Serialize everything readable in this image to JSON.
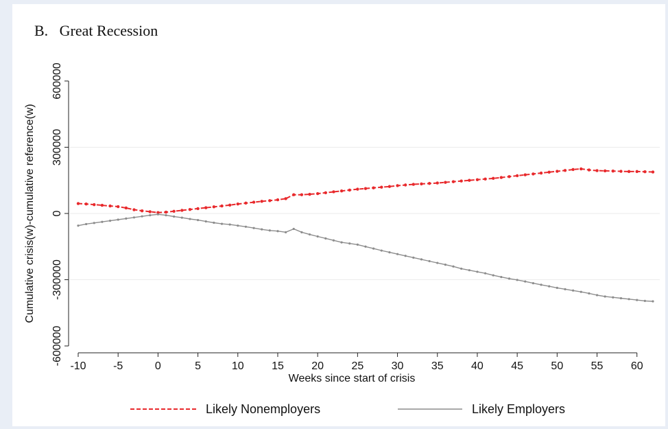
{
  "chart_data": {
    "type": "line",
    "title": "B.   Great Recession",
    "xlabel": "Weeks since start of crisis",
    "ylabel": "Cumulative crisis(w)-cumulative reference(w)",
    "xlim": [
      -10,
      62
    ],
    "ylim": [
      -600000,
      600000
    ],
    "x_ticks": [
      -10,
      -5,
      0,
      5,
      10,
      15,
      20,
      25,
      30,
      35,
      40,
      45,
      50,
      55,
      60
    ],
    "y_ticks": [
      -600000,
      -300000,
      0,
      300000,
      600000
    ],
    "x_tick_labels": [
      "-10",
      "-5",
      "0",
      "5",
      "10",
      "15",
      "20",
      "25",
      "30",
      "35",
      "40",
      "45",
      "50",
      "55",
      "60"
    ],
    "y_tick_labels": [
      "-600000",
      "-300000",
      "0",
      "300000",
      "600000"
    ],
    "grid": "horizontal",
    "legend": "bottom",
    "series": [
      {
        "name": "Likely Nonemployers",
        "color": "#e8292c",
        "style": "dashed",
        "x": [
          -10,
          -9,
          -8,
          -7,
          -6,
          -5,
          -4,
          -3,
          -2,
          -1,
          0,
          1,
          2,
          3,
          4,
          5,
          6,
          7,
          8,
          9,
          10,
          11,
          12,
          13,
          14,
          15,
          16,
          17,
          18,
          19,
          20,
          21,
          22,
          23,
          24,
          25,
          26,
          27,
          28,
          29,
          30,
          31,
          32,
          33,
          34,
          35,
          36,
          37,
          38,
          39,
          40,
          41,
          42,
          43,
          44,
          45,
          46,
          47,
          48,
          49,
          50,
          51,
          52,
          53,
          54,
          55,
          56,
          57,
          58,
          59,
          60,
          61,
          62
        ],
        "values": [
          45000,
          43000,
          40000,
          37000,
          34000,
          31000,
          25000,
          17000,
          12000,
          8000,
          4000,
          6000,
          10000,
          14000,
          18000,
          22000,
          26000,
          30000,
          34000,
          38000,
          43000,
          47000,
          51000,
          55000,
          58000,
          62000,
          67000,
          85000,
          85000,
          87000,
          90000,
          94000,
          98000,
          102000,
          106000,
          110000,
          113000,
          116000,
          119000,
          122000,
          126000,
          129000,
          132000,
          134000,
          136000,
          138000,
          141000,
          144000,
          147000,
          150000,
          153000,
          156000,
          159000,
          163000,
          167000,
          171000,
          175000,
          179000,
          183000,
          187000,
          191000,
          195000,
          199000,
          202000,
          197000,
          194000,
          193000,
          192000,
          191000,
          190000,
          190000,
          189000,
          188000
        ]
      },
      {
        "name": "Likely Employers",
        "color": "#8c8c8c",
        "style": "solid",
        "x": [
          -10,
          -9,
          -8,
          -7,
          -6,
          -5,
          -4,
          -3,
          -2,
          -1,
          0,
          1,
          2,
          3,
          4,
          5,
          6,
          7,
          8,
          9,
          10,
          11,
          12,
          13,
          14,
          15,
          16,
          17,
          18,
          19,
          20,
          21,
          22,
          23,
          24,
          25,
          26,
          27,
          28,
          29,
          30,
          31,
          32,
          33,
          34,
          35,
          36,
          37,
          38,
          39,
          40,
          41,
          42,
          43,
          44,
          45,
          46,
          47,
          48,
          49,
          50,
          51,
          52,
          53,
          54,
          55,
          56,
          57,
          58,
          59,
          60,
          61,
          62
        ],
        "values": [
          -55000,
          -48000,
          -43000,
          -38000,
          -33000,
          -28000,
          -23000,
          -18000,
          -13000,
          -8000,
          -4000,
          -8000,
          -14000,
          -19000,
          -25000,
          -30000,
          -36000,
          -42000,
          -47000,
          -50000,
          -55000,
          -60000,
          -66000,
          -72000,
          -77000,
          -80000,
          -85000,
          -70000,
          -85000,
          -95000,
          -104000,
          -113000,
          -122000,
          -131000,
          -136000,
          -141000,
          -150000,
          -159000,
          -168000,
          -176000,
          -184000,
          -192000,
          -200000,
          -208000,
          -216000,
          -224000,
          -232000,
          -240000,
          -250000,
          -257000,
          -264000,
          -271000,
          -280000,
          -288000,
          -295000,
          -301000,
          -308000,
          -316000,
          -323000,
          -330000,
          -337000,
          -343000,
          -349000,
          -355000,
          -362000,
          -370000,
          -376000,
          -380000,
          -384000,
          -388000,
          -392000,
          -396000,
          -398000
        ]
      }
    ]
  }
}
